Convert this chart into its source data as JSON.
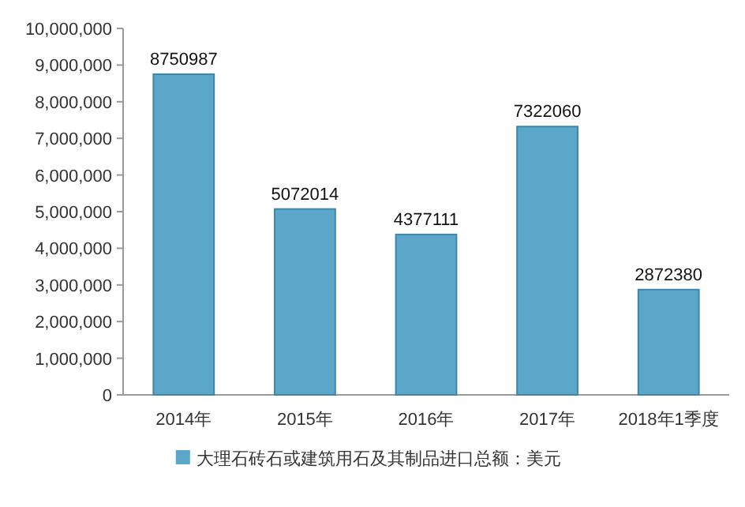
{
  "chart_data": {
    "type": "bar",
    "categories": [
      "2014年",
      "2015年",
      "2016年",
      "2017年",
      "2018年1季度"
    ],
    "series": [
      {
        "name": "大理石砖石或建筑用石及其制品进口总额：美元",
        "color": "#5ba7c9",
        "values": [
          8750987,
          5072014,
          4377111,
          7322060,
          2872380
        ]
      }
    ],
    "ylim": [
      0,
      10000000
    ],
    "yticks": [
      {
        "value": 0,
        "label": "0"
      },
      {
        "value": 1000000,
        "label": "1,000,000"
      },
      {
        "value": 2000000,
        "label": "2,000,000"
      },
      {
        "value": 3000000,
        "label": "3,000,000"
      },
      {
        "value": 4000000,
        "label": "4,000,000"
      },
      {
        "value": 5000000,
        "label": "5,000,000"
      },
      {
        "value": 6000000,
        "label": "6,000,000"
      },
      {
        "value": 7000000,
        "label": "7,000,000"
      },
      {
        "value": 8000000,
        "label": "8,000,000"
      },
      {
        "value": 9000000,
        "label": "9,000,000"
      },
      {
        "value": 10000000,
        "label": "10,000,000"
      }
    ],
    "data_labels": true,
    "legend": "bottom",
    "grid": false
  }
}
